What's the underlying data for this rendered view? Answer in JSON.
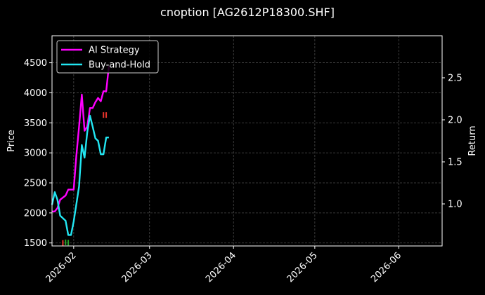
{
  "chart_data": {
    "type": "line",
    "title": "cnoption [AG2612P18300.SHF]",
    "xlabel": "",
    "ylabel": "Price",
    "y2label": "Return",
    "xlim": [
      "2026-01-24",
      "2026-06-17"
    ],
    "ylim": [
      1450,
      4950
    ],
    "y2lim": [
      0.5,
      3.0
    ],
    "x_ticks": [
      "2026-02",
      "2026-03",
      "2026-04",
      "2026-05",
      "2026-06"
    ],
    "y_ticks": [
      1500,
      2000,
      2500,
      3000,
      3500,
      4000,
      4500
    ],
    "y2_ticks": [
      1.0,
      1.5,
      2.0,
      2.5
    ],
    "y2_tick_labels": [
      "1.0",
      "1.5",
      "2.0",
      "2.5"
    ],
    "grid": true,
    "legend_position": "top-left",
    "series": [
      {
        "name": "AI Strategy",
        "color": "#ff00ff",
        "axis": "right",
        "x": [
          "2026-01-24",
          "2026-01-25",
          "2026-01-26",
          "2026-01-27",
          "2026-01-29",
          "2026-01-30",
          "2026-01-31",
          "2026-02-01",
          "2026-02-02",
          "2026-02-03",
          "2026-02-04",
          "2026-02-05",
          "2026-02-06",
          "2026-02-07",
          "2026-02-08",
          "2026-02-09",
          "2026-02-10",
          "2026-02-11",
          "2026-02-12",
          "2026-02-13",
          "2026-02-14"
        ],
        "values": [
          0.91,
          0.91,
          0.95,
          1.05,
          1.1,
          1.17,
          1.17,
          1.17,
          1.58,
          1.92,
          2.3,
          1.87,
          1.92,
          2.14,
          2.14,
          2.21,
          2.26,
          2.22,
          2.34,
          2.34,
          2.64
        ]
      },
      {
        "name": "Buy-and-Hold",
        "color": "#22e6f2",
        "axis": "right",
        "x": [
          "2026-01-24",
          "2026-01-25",
          "2026-01-26",
          "2026-01-27",
          "2026-01-29",
          "2026-01-30",
          "2026-01-31",
          "2026-02-01",
          "2026-02-02",
          "2026-02-03",
          "2026-02-04",
          "2026-02-05",
          "2026-02-06",
          "2026-02-07",
          "2026-02-08",
          "2026-02-09",
          "2026-02-10",
          "2026-02-11",
          "2026-02-12",
          "2026-02-13",
          "2026-02-14"
        ],
        "values": [
          0.99,
          1.14,
          1.05,
          0.86,
          0.8,
          0.63,
          0.63,
          0.79,
          1.0,
          1.21,
          1.7,
          1.55,
          1.85,
          2.05,
          1.92,
          1.78,
          1.75,
          1.59,
          1.59,
          1.79,
          1.79
        ]
      }
    ],
    "signal_markers": [
      {
        "date": "2026-01-28",
        "price": 1500,
        "color": "#e8342c"
      },
      {
        "date": "2026-01-29",
        "price": 1510,
        "color": "#2aa52a"
      },
      {
        "date": "2026-01-30",
        "price": 1505,
        "color": "#2aa52a"
      },
      {
        "date": "2026-02-12",
        "price": 3630,
        "color": "#e8342c"
      },
      {
        "date": "2026-02-13",
        "price": 3630,
        "color": "#e8342c"
      }
    ]
  }
}
